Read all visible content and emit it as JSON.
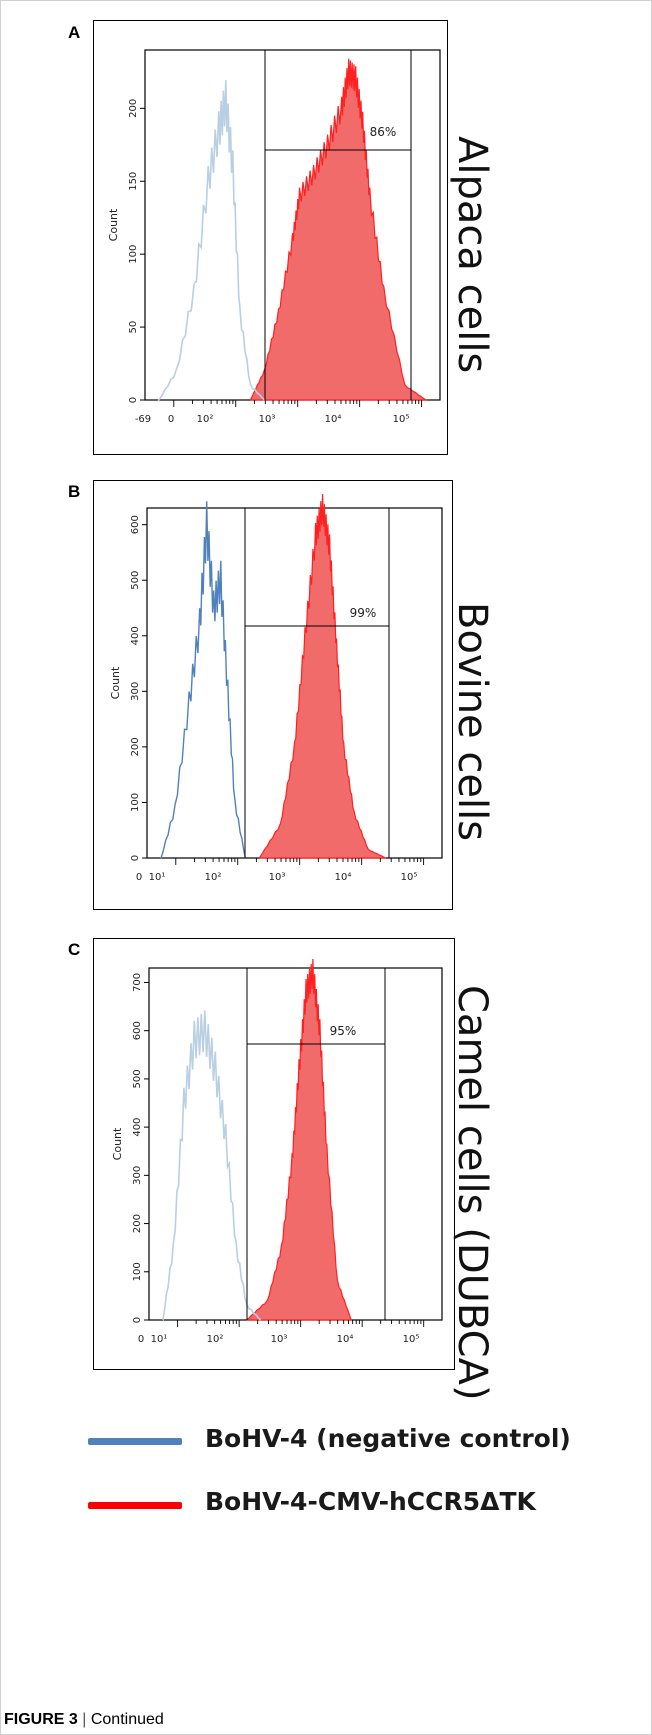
{
  "legend": [
    {
      "label": "BoHV-4 (negative control)",
      "color": "#4f81bd"
    },
    {
      "label": "BoHV-4-CMV-hCCR5ΔTK",
      "color": "#ff0000"
    }
  ],
  "caption": {
    "bold": "FIGURE 3",
    "sep": " | ",
    "text": "Continued"
  },
  "colors": {
    "control_line": "#4f81bd",
    "sample_line": "#ff2020",
    "sample_fill": "#f26b6b"
  },
  "chart_data": [
    {
      "panel": "A",
      "side_label": "Alpaca cells",
      "type": "area",
      "ylabel": "Count",
      "ylim": [
        0,
        240
      ],
      "y_ticks": [
        "0",
        "50",
        "100",
        "150",
        "200"
      ],
      "x_scale": "log",
      "x_ticks": [
        "-69",
        "0",
        "10²",
        "10³",
        "10⁴",
        "10⁵"
      ],
      "gate_label": "86%",
      "gate_percent": 86,
      "control_series": {
        "name": "BoHV-4 (negative control)",
        "x_log": [
          1.0,
          1.25,
          1.5,
          1.7,
          1.85,
          1.95,
          2.05,
          2.15,
          2.3,
          2.5
        ],
        "y": [
          0,
          20,
          75,
          150,
          185,
          205,
          160,
          60,
          10,
          0
        ]
      },
      "sample_series": {
        "name": "BoHV-4-CMV-hCCR5ΔTK",
        "x_log": [
          2.3,
          2.5,
          2.7,
          2.9,
          3.0,
          3.2,
          3.4,
          3.6,
          3.7,
          3.8,
          3.9,
          4.0,
          4.2,
          4.5,
          4.8
        ],
        "y": [
          0,
          20,
          60,
          110,
          140,
          155,
          175,
          200,
          225,
          220,
          190,
          140,
          75,
          10,
          0
        ]
      }
    },
    {
      "panel": "B",
      "side_label": "Bovine cells",
      "type": "area",
      "ylabel": "Count",
      "ylim": [
        0,
        630
      ],
      "y_ticks": [
        "0",
        "100",
        "200",
        "300",
        "400",
        "500",
        "600"
      ],
      "x_scale": "log",
      "x_ticks": [
        "0",
        "10¹",
        "10²",
        "10³",
        "10⁴",
        "10⁵"
      ],
      "gate_label": "99%",
      "gate_percent": 99,
      "control_series": {
        "name": "BoHV-4 (negative control)",
        "x_log": [
          1.0,
          1.2,
          1.4,
          1.55,
          1.65,
          1.75,
          1.85,
          1.95,
          2.05,
          2.2
        ],
        "y": [
          0,
          90,
          280,
          420,
          600,
          450,
          500,
          300,
          100,
          0
        ]
      },
      "sample_series": {
        "name": "BoHV-4-CMV-hCCR5ΔTK",
        "x_log": [
          2.4,
          2.7,
          2.9,
          3.05,
          3.2,
          3.3,
          3.4,
          3.5,
          3.6,
          3.75,
          3.95,
          4.2
        ],
        "y": [
          0,
          60,
          200,
          400,
          580,
          630,
          560,
          380,
          200,
          80,
          15,
          0
        ]
      }
    },
    {
      "panel": "C",
      "side_label": "Camel cells (DUBCA)",
      "type": "area",
      "ylabel": "Count",
      "ylim": [
        0,
        730
      ],
      "y_ticks": [
        "0",
        "100",
        "200",
        "300",
        "400",
        "500",
        "600",
        "700"
      ],
      "x_scale": "log",
      "x_ticks": [
        "0",
        "10¹",
        "10²",
        "10³",
        "10⁴",
        "10⁵"
      ],
      "gate_label": "95%",
      "gate_percent": 95,
      "control_series": {
        "name": "BoHV-4 (negative control)",
        "x_log": [
          1.0,
          1.15,
          1.3,
          1.45,
          1.6,
          1.75,
          1.9,
          2.05,
          2.2,
          2.4
        ],
        "y": [
          0,
          150,
          450,
          580,
          600,
          520,
          380,
          150,
          30,
          0
        ]
      },
      "sample_series": {
        "name": "BoHV-4-CMV-hCCR5ΔTK",
        "x_log": [
          2.2,
          2.5,
          2.7,
          2.85,
          2.95,
          3.05,
          3.15,
          3.25,
          3.35,
          3.5,
          3.7
        ],
        "y": [
          0,
          40,
          150,
          330,
          520,
          680,
          720,
          600,
          350,
          80,
          0
        ]
      }
    }
  ]
}
